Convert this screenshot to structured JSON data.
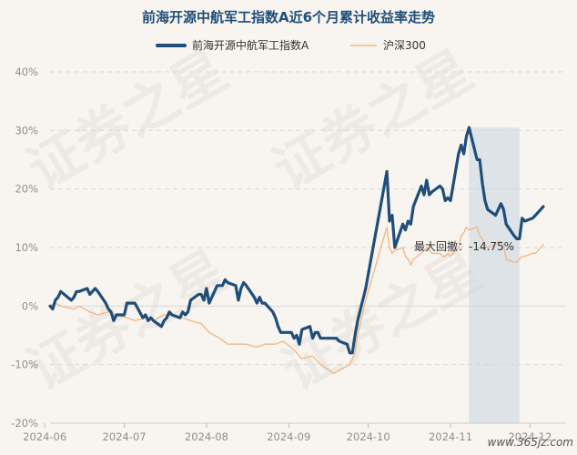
{
  "chart_data": {
    "type": "line",
    "title": "前海开源中航军工指数A近6个月累计收益率走势",
    "ylim": [
      -20,
      40
    ],
    "yticks": [
      40,
      30,
      20,
      10,
      0,
      -10,
      -20
    ],
    "ytick_labels": [
      "40%",
      "30%",
      "20%",
      "10%",
      "0%",
      "-10%",
      "-20%"
    ],
    "x_range": [
      "2024-06-03",
      "2024-12-06"
    ],
    "xticks": [
      "2024-06-01",
      "2024-07-01",
      "2024-08-01",
      "2024-09-01",
      "2024-10-01",
      "2024-11-01",
      "2024-12-01"
    ],
    "xtick_labels": [
      "2024-06",
      "2024-07",
      "2024-08",
      "2024-09",
      "2024-10",
      "2024-11",
      "2024-12"
    ],
    "grid": true,
    "legend_position": "top-center",
    "series": [
      {
        "name": "前海开源中航军工指数A",
        "color": "#1f4e7a",
        "points": [
          [
            "2024-06-03",
            0
          ],
          [
            "2024-06-04",
            -0.5
          ],
          [
            "2024-06-05",
            1
          ],
          [
            "2024-06-06",
            1.5
          ],
          [
            "2024-06-07",
            2.5
          ],
          [
            "2024-06-11",
            1
          ],
          [
            "2024-06-12",
            1.5
          ],
          [
            "2024-06-13",
            2.5
          ],
          [
            "2024-06-14",
            2.5
          ],
          [
            "2024-06-17",
            3
          ],
          [
            "2024-06-18",
            2
          ],
          [
            "2024-06-19",
            2.5
          ],
          [
            "2024-06-20",
            3
          ],
          [
            "2024-06-21",
            2.5
          ],
          [
            "2024-06-24",
            0.5
          ],
          [
            "2024-06-25",
            -0.5
          ],
          [
            "2024-06-26",
            -1
          ],
          [
            "2024-06-27",
            -2.5
          ],
          [
            "2024-06-28",
            -1.5
          ],
          [
            "2024-07-01",
            -1.5
          ],
          [
            "2024-07-02",
            0.5
          ],
          [
            "2024-07-03",
            0.5
          ],
          [
            "2024-07-04",
            0.5
          ],
          [
            "2024-07-05",
            0.5
          ],
          [
            "2024-07-08",
            -2
          ],
          [
            "2024-07-09",
            -1.5
          ],
          [
            "2024-07-10",
            -2.5
          ],
          [
            "2024-07-11",
            -2
          ],
          [
            "2024-07-12",
            -2.5
          ],
          [
            "2024-07-15",
            -3.5
          ],
          [
            "2024-07-16",
            -2.5
          ],
          [
            "2024-07-17",
            -2
          ],
          [
            "2024-07-18",
            -1
          ],
          [
            "2024-07-19",
            -1.5
          ],
          [
            "2024-07-22",
            -2
          ],
          [
            "2024-07-23",
            -1
          ],
          [
            "2024-07-24",
            -1.5
          ],
          [
            "2024-07-25",
            -1
          ],
          [
            "2024-07-26",
            1
          ],
          [
            "2024-07-29",
            2
          ],
          [
            "2024-07-30",
            2
          ],
          [
            "2024-07-31",
            1
          ],
          [
            "2024-08-01",
            3
          ],
          [
            "2024-08-02",
            0.5
          ],
          [
            "2024-08-05",
            3.5
          ],
          [
            "2024-08-06",
            3.5
          ],
          [
            "2024-08-07",
            3.5
          ],
          [
            "2024-08-08",
            4.5
          ],
          [
            "2024-08-09",
            4
          ],
          [
            "2024-08-12",
            3.5
          ],
          [
            "2024-08-13",
            1
          ],
          [
            "2024-08-14",
            3
          ],
          [
            "2024-08-15",
            4
          ],
          [
            "2024-08-16",
            3.5
          ],
          [
            "2024-08-19",
            1.5
          ],
          [
            "2024-08-20",
            0.5
          ],
          [
            "2024-08-21",
            1.5
          ],
          [
            "2024-08-22",
            0.5
          ],
          [
            "2024-08-23",
            0.5
          ],
          [
            "2024-08-26",
            -1
          ],
          [
            "2024-08-27",
            -2
          ],
          [
            "2024-08-28",
            -3.5
          ],
          [
            "2024-08-29",
            -4.5
          ],
          [
            "2024-08-30",
            -4.5
          ],
          [
            "2024-09-02",
            -4.5
          ],
          [
            "2024-09-03",
            -5.5
          ],
          [
            "2024-09-04",
            -5
          ],
          [
            "2024-09-05",
            -6.5
          ],
          [
            "2024-09-06",
            -4
          ],
          [
            "2024-09-09",
            -3.5
          ],
          [
            "2024-09-10",
            -5.5
          ],
          [
            "2024-09-11",
            -4.5
          ],
          [
            "2024-09-12",
            -4.5
          ],
          [
            "2024-09-13",
            -5.5
          ],
          [
            "2024-09-18",
            -5.5
          ],
          [
            "2024-09-19",
            -5.5
          ],
          [
            "2024-09-20",
            -6
          ],
          [
            "2024-09-23",
            -6.5
          ],
          [
            "2024-09-24",
            -8
          ],
          [
            "2024-09-25",
            -8
          ],
          [
            "2024-09-26",
            -5
          ],
          [
            "2024-09-27",
            -2.5
          ],
          [
            "2024-09-30",
            3
          ],
          [
            "2024-10-08",
            23
          ],
          [
            "2024-10-09",
            14.5
          ],
          [
            "2024-10-10",
            15.5
          ],
          [
            "2024-10-11",
            10
          ],
          [
            "2024-10-14",
            14
          ],
          [
            "2024-10-15",
            13
          ],
          [
            "2024-10-16",
            14.5
          ],
          [
            "2024-10-17",
            14
          ],
          [
            "2024-10-18",
            17
          ],
          [
            "2024-10-21",
            20.5
          ],
          [
            "2024-10-22",
            19
          ],
          [
            "2024-10-23",
            21.5
          ],
          [
            "2024-10-24",
            19
          ],
          [
            "2024-10-25",
            19.5
          ],
          [
            "2024-10-28",
            20.5
          ],
          [
            "2024-10-29",
            20
          ],
          [
            "2024-10-30",
            18
          ],
          [
            "2024-10-31",
            18.5
          ],
          [
            "2024-11-01",
            18
          ],
          [
            "2024-11-04",
            26
          ],
          [
            "2024-11-05",
            27.5
          ],
          [
            "2024-11-06",
            26
          ],
          [
            "2024-11-07",
            29
          ],
          [
            "2024-11-08",
            30.5
          ],
          [
            "2024-11-11",
            25
          ],
          [
            "2024-11-12",
            25
          ],
          [
            "2024-11-13",
            21
          ],
          [
            "2024-11-14",
            18
          ],
          [
            "2024-11-15",
            16.5
          ],
          [
            "2024-11-18",
            15.5
          ],
          [
            "2024-11-19",
            16.5
          ],
          [
            "2024-11-20",
            17.5
          ],
          [
            "2024-11-21",
            16.5
          ],
          [
            "2024-11-22",
            14
          ],
          [
            "2024-11-25",
            12
          ],
          [
            "2024-11-26",
            11.5
          ],
          [
            "2024-11-27",
            11.5
          ],
          [
            "2024-11-28",
            15
          ],
          [
            "2024-11-29",
            14.5
          ],
          [
            "2024-12-02",
            15
          ],
          [
            "2024-12-03",
            15.5
          ],
          [
            "2024-12-04",
            16
          ],
          [
            "2024-12-05",
            16.5
          ],
          [
            "2024-12-06",
            17
          ]
        ]
      },
      {
        "name": "沪深300",
        "color": "#f2b582",
        "points": [
          [
            "2024-06-03",
            0
          ],
          [
            "2024-06-05",
            0.5
          ],
          [
            "2024-06-07",
            0
          ],
          [
            "2024-06-12",
            -0.5
          ],
          [
            "2024-06-14",
            0
          ],
          [
            "2024-06-18",
            -1
          ],
          [
            "2024-06-21",
            -1.5
          ],
          [
            "2024-06-25",
            -1
          ],
          [
            "2024-06-28",
            -1.5
          ],
          [
            "2024-07-02",
            -2
          ],
          [
            "2024-07-05",
            -2.5
          ],
          [
            "2024-07-09",
            -2
          ],
          [
            "2024-07-12",
            -2.5
          ],
          [
            "2024-07-16",
            -1.5
          ],
          [
            "2024-07-19",
            -1.5
          ],
          [
            "2024-07-23",
            -2
          ],
          [
            "2024-07-26",
            -2.5
          ],
          [
            "2024-07-30",
            -3
          ],
          [
            "2024-08-02",
            -4.5
          ],
          [
            "2024-08-06",
            -5.5
          ],
          [
            "2024-08-09",
            -6.5
          ],
          [
            "2024-08-13",
            -6.5
          ],
          [
            "2024-08-16",
            -6.5
          ],
          [
            "2024-08-20",
            -7
          ],
          [
            "2024-08-23",
            -6.5
          ],
          [
            "2024-08-27",
            -6.5
          ],
          [
            "2024-08-30",
            -6
          ],
          [
            "2024-09-03",
            -7.5
          ],
          [
            "2024-09-06",
            -9
          ],
          [
            "2024-09-10",
            -8.5
          ],
          [
            "2024-09-13",
            -10
          ],
          [
            "2024-09-18",
            -11.5
          ],
          [
            "2024-09-20",
            -11
          ],
          [
            "2024-09-24",
            -10
          ],
          [
            "2024-09-26",
            -8
          ],
          [
            "2024-09-27",
            -5
          ],
          [
            "2024-09-30",
            1
          ],
          [
            "2024-10-08",
            13.5
          ],
          [
            "2024-10-09",
            10
          ],
          [
            "2024-10-10",
            9
          ],
          [
            "2024-10-11",
            9.5
          ],
          [
            "2024-10-14",
            10
          ],
          [
            "2024-10-15",
            8.5
          ],
          [
            "2024-10-16",
            8
          ],
          [
            "2024-10-17",
            7
          ],
          [
            "2024-10-18",
            8
          ],
          [
            "2024-10-21",
            9
          ],
          [
            "2024-10-22",
            9.5
          ],
          [
            "2024-10-23",
            10
          ],
          [
            "2024-10-24",
            9.5
          ],
          [
            "2024-10-25",
            9
          ],
          [
            "2024-10-28",
            9
          ],
          [
            "2024-10-29",
            8.5
          ],
          [
            "2024-10-30",
            8.5
          ],
          [
            "2024-10-31",
            9
          ],
          [
            "2024-11-01",
            8.5
          ],
          [
            "2024-11-04",
            10
          ],
          [
            "2024-11-05",
            12
          ],
          [
            "2024-11-06",
            12.5
          ],
          [
            "2024-11-07",
            13.5
          ],
          [
            "2024-11-08",
            13
          ],
          [
            "2024-11-11",
            13.5
          ],
          [
            "2024-11-12",
            12
          ],
          [
            "2024-11-13",
            11.5
          ],
          [
            "2024-11-14",
            10.5
          ],
          [
            "2024-11-15",
            10
          ],
          [
            "2024-11-18",
            10.5
          ],
          [
            "2024-11-19",
            11
          ],
          [
            "2024-11-20",
            11
          ],
          [
            "2024-11-21",
            10.5
          ],
          [
            "2024-11-22",
            8
          ],
          [
            "2024-11-25",
            7.5
          ],
          [
            "2024-11-26",
            7.5
          ],
          [
            "2024-11-27",
            8
          ],
          [
            "2024-11-28",
            8.5
          ],
          [
            "2024-11-29",
            8.5
          ],
          [
            "2024-12-02",
            9
          ],
          [
            "2024-12-03",
            9
          ],
          [
            "2024-12-04",
            9.5
          ],
          [
            "2024-12-05",
            10
          ],
          [
            "2024-12-06",
            10.5
          ]
        ]
      }
    ],
    "drawdown": {
      "label": "最大回撤：-14.75%",
      "start": "2024-11-08",
      "end": "2024-11-27",
      "color": "#c9d6e2"
    }
  },
  "watermark": [
    "证券之星",
    "证券之星"
  ],
  "site_mark": "www.365jz.com"
}
